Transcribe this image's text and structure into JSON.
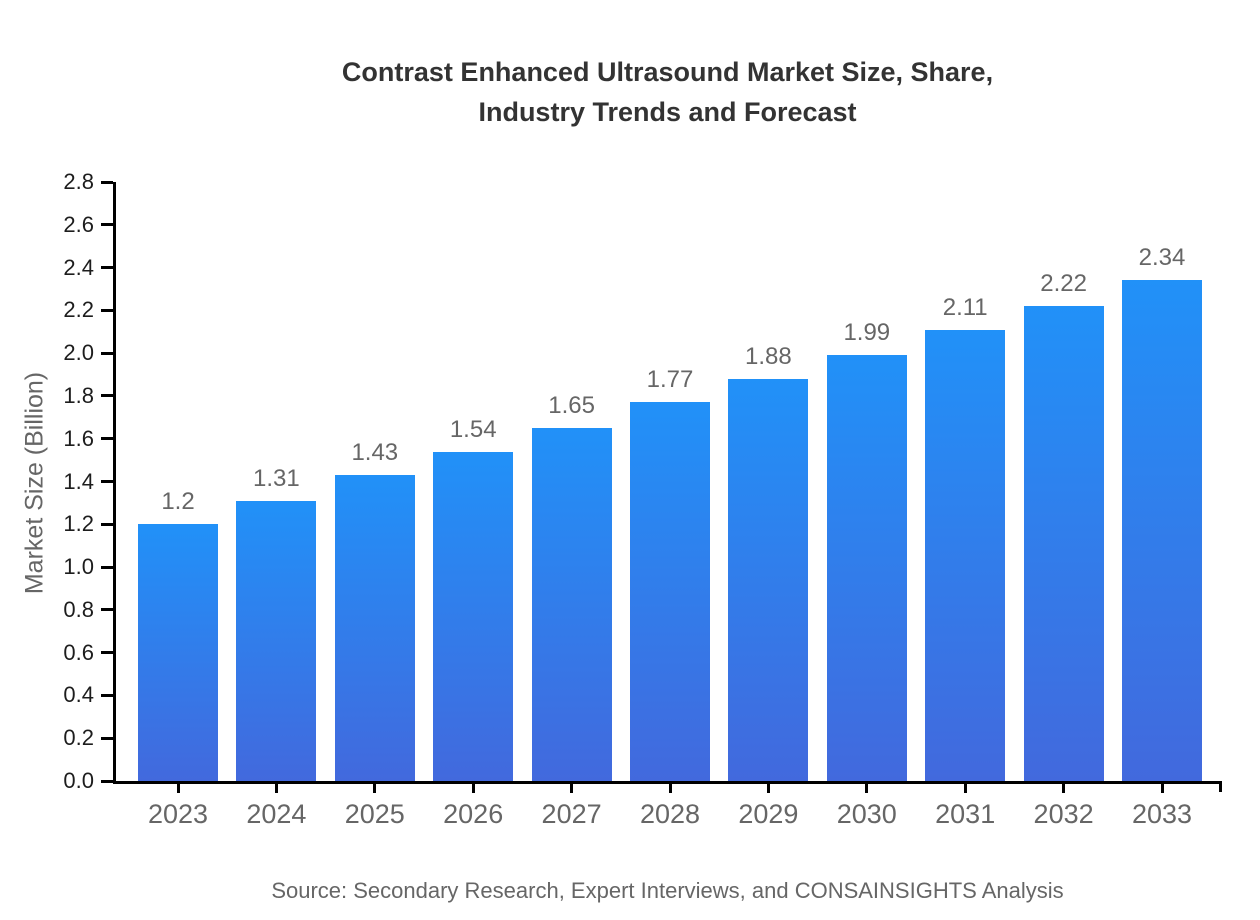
{
  "colors": {
    "bar_top": "#2191f8",
    "bar_bottom": "#4269dd",
    "axis": "#000000",
    "title_text": "#333333",
    "muted_text": "#666666",
    "tick_text": "#1d1d1d"
  },
  "chart_data": {
    "type": "bar",
    "title": "Contrast Enhanced Ultrasound Market Size, Share,\nIndustry Trends and Forecast",
    "categories": [
      "2023",
      "2024",
      "2025",
      "2026",
      "2027",
      "2028",
      "2029",
      "2030",
      "2031",
      "2032",
      "2033"
    ],
    "values": [
      1.2,
      1.31,
      1.43,
      1.54,
      1.65,
      1.77,
      1.88,
      1.99,
      2.11,
      2.22,
      2.34
    ],
    "value_labels": [
      "1.2",
      "1.31",
      "1.43",
      "1.54",
      "1.65",
      "1.77",
      "1.88",
      "1.99",
      "2.11",
      "2.22",
      "2.34"
    ],
    "xlabel": "",
    "ylabel": "Market Size (Billion)",
    "ylim": [
      0,
      2.8
    ],
    "y_tick_step": 0.2,
    "y_tick_labels": [
      "0.0",
      "0.2",
      "0.4",
      "0.6",
      "0.8",
      "1.0",
      "1.2",
      "1.4",
      "1.6",
      "1.8",
      "2.0",
      "2.2",
      "2.4",
      "2.6",
      "2.8"
    ],
    "grid": false,
    "legend": null,
    "source": "Source: Secondary Research, Expert Interviews, and CONSAINSIGHTS Analysis"
  }
}
